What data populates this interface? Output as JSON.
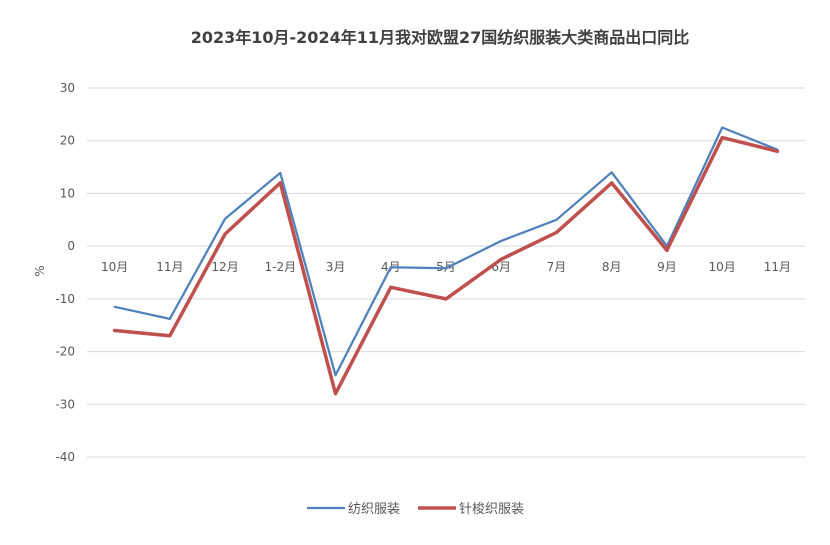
{
  "chart_data": {
    "type": "line",
    "title": "2023年10月-2024年11月我对欧盟27国纺织服装大类商品出口同比",
    "ylabel": "%",
    "ylim": [
      -40,
      30
    ],
    "yticks": [
      30,
      20,
      10,
      0,
      -10,
      -20,
      -30,
      -40
    ],
    "grid": true,
    "legend_position": "bottom",
    "categories": [
      "10月",
      "11月",
      "12月",
      "1-2月",
      "3月",
      "4月",
      "5月",
      "6月",
      "7月",
      "8月",
      "9月",
      "10月",
      "11月"
    ],
    "series": [
      {
        "name": "纺织服装",
        "color": "#4F81BD",
        "values": [
          -11.5,
          -13.8,
          5.2,
          13.9,
          -24.5,
          -4.0,
          -4.2,
          1.0,
          5.0,
          14.0,
          0.0,
          22.5,
          18.3
        ]
      },
      {
        "name": "针梭织服装",
        "color": "#C0504D",
        "values": [
          -16.0,
          -17.0,
          2.3,
          12.0,
          -28.0,
          -7.8,
          -10.0,
          -2.5,
          2.6,
          12.0,
          -0.8,
          20.6,
          18.0
        ]
      }
    ]
  }
}
